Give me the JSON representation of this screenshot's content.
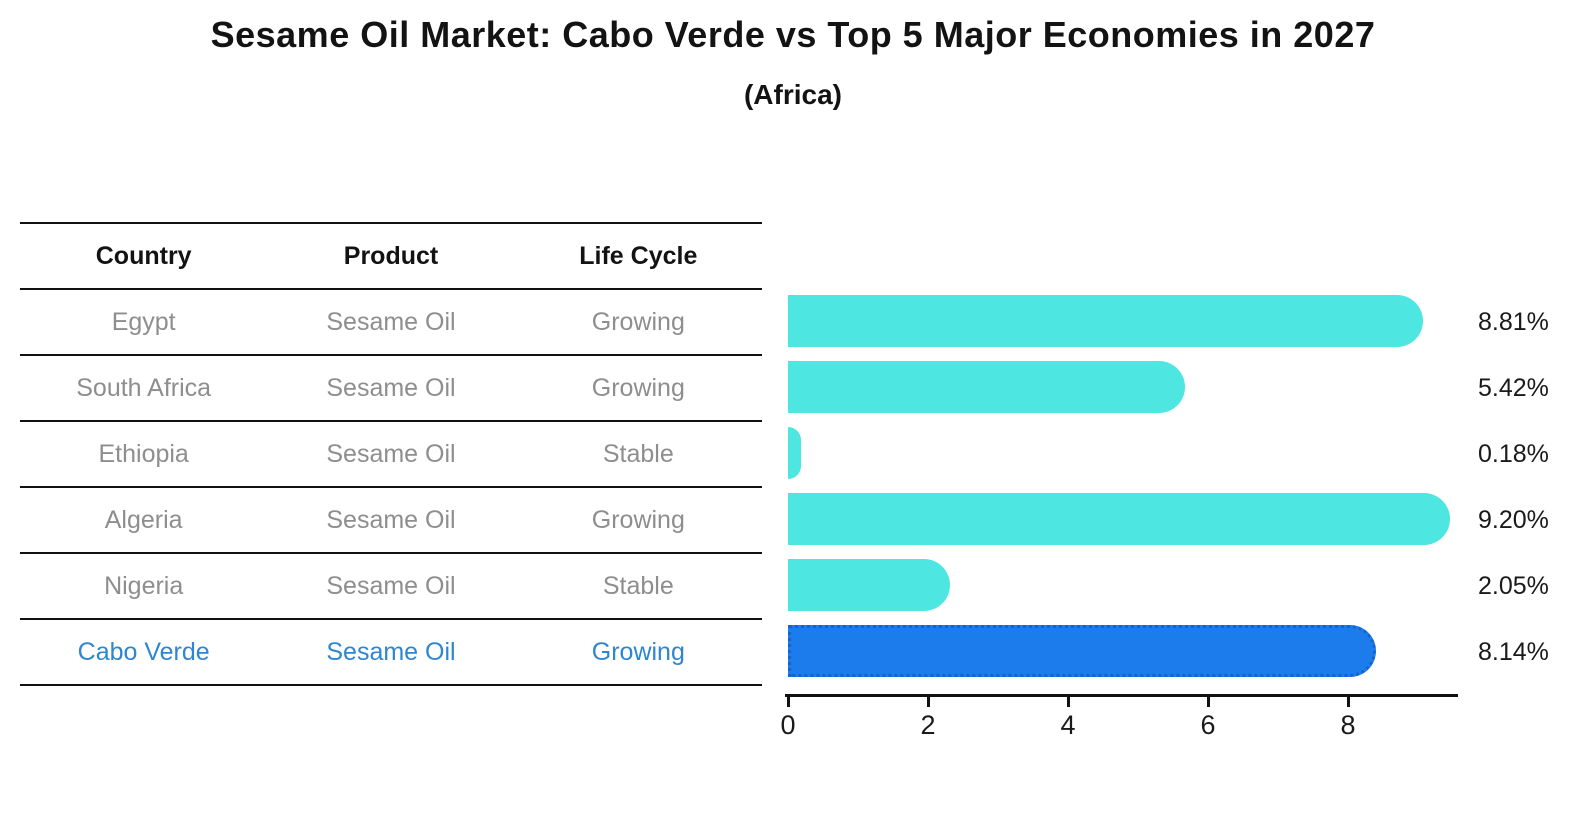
{
  "title": "Sesame Oil Market: Cabo Verde vs Top 5 Major Economies in 2027",
  "subtitle": "(Africa)",
  "table": {
    "headers": [
      "Country",
      "Product",
      "Life Cycle"
    ],
    "rows": [
      {
        "country": "Egypt",
        "product": "Sesame Oil",
        "life_cycle": "Growing",
        "highlight": false
      },
      {
        "country": "South Africa",
        "product": "Sesame Oil",
        "life_cycle": "Growing",
        "highlight": false
      },
      {
        "country": "Ethiopia",
        "product": "Sesame Oil",
        "life_cycle": "Stable",
        "highlight": false
      },
      {
        "country": "Algeria",
        "product": "Sesame Oil",
        "life_cycle": "Growing",
        "highlight": false
      },
      {
        "country": "Nigeria",
        "product": "Sesame Oil",
        "life_cycle": "Stable",
        "highlight": false
      },
      {
        "country": "Cabo Verde",
        "product": "Sesame Oil",
        "life_cycle": "Growing",
        "highlight": true
      }
    ]
  },
  "chart_data": {
    "type": "bar",
    "orientation": "horizontal",
    "title": "Sesame Oil Market: Cabo Verde vs Top 5 Major Economies in 2027",
    "subtitle": "(Africa)",
    "categories": [
      "Egypt",
      "South Africa",
      "Ethiopia",
      "Algeria",
      "Nigeria",
      "Cabo Verde"
    ],
    "values": [
      8.81,
      5.42,
      0.18,
      9.2,
      2.05,
      8.14
    ],
    "value_labels": [
      "8.81%",
      "5.42%",
      "0.18%",
      "9.20%",
      "2.05%",
      "8.14%"
    ],
    "highlight_category": "Cabo Verde",
    "x_ticks": [
      0,
      2,
      4,
      6,
      8
    ],
    "xlim": [
      0,
      9.5
    ],
    "grid": false,
    "legend": false,
    "colors": {
      "bar_default": "#4DE6E0",
      "bar_highlight": "#1C7CEB",
      "bar_highlight_border": "#1563D2",
      "row_text": "#8E8E8E",
      "highlight_text": "#2E86D1",
      "axis": "#111111",
      "title_text": "#131313"
    }
  }
}
